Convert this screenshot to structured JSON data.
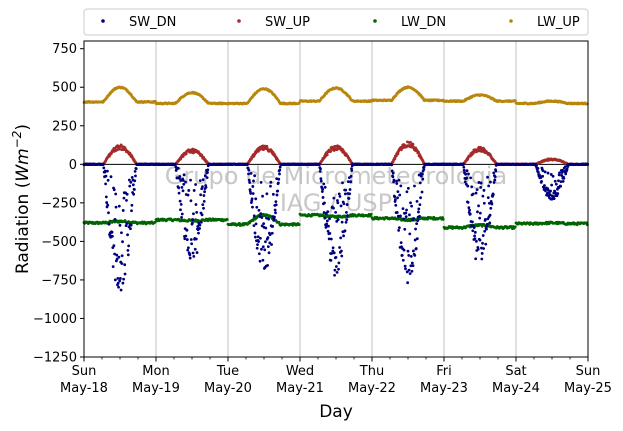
{
  "chart_data": {
    "type": "scatter",
    "title": "",
    "xlabel": "Day",
    "ylabel_main": "Radiation (",
    "ylabel_unit": "Wm",
    "ylabel_exp": "−2",
    "ylabel_close": ")",
    "ylim": [
      -1250,
      800
    ],
    "xlim": [
      0,
      7
    ],
    "yticks": [
      -1250,
      -1000,
      -750,
      -500,
      -250,
      0,
      250,
      500,
      750
    ],
    "ytick_labels": [
      "−1250",
      "−1000",
      "−750",
      "−500",
      "−250",
      "0",
      "250",
      "500",
      "750"
    ],
    "xticks": [
      {
        "x": 0,
        "day": "Sun",
        "date": "May-18"
      },
      {
        "x": 1,
        "day": "Mon",
        "date": "May-19"
      },
      {
        "x": 2,
        "day": "Tue",
        "date": "May-20"
      },
      {
        "x": 3,
        "day": "Wed",
        "date": "May-21"
      },
      {
        "x": 4,
        "day": "Thu",
        "date": "May-22"
      },
      {
        "x": 5,
        "day": "Fri",
        "date": "May-23"
      },
      {
        "x": 6,
        "day": "Sat",
        "date": "May-24"
      },
      {
        "x": 7,
        "day": "Sun",
        "date": "May-25"
      }
    ],
    "grid": "vertical",
    "legend_position": "top",
    "watermark": [
      "Grupo de Micrometeorologia",
      "IAG / USP"
    ],
    "series": [
      {
        "name": "SW_DN",
        "color": "#00007f"
      },
      {
        "name": "SW_UP",
        "color": "#a52a2a"
      },
      {
        "name": "LW_DN",
        "color": "#006400"
      },
      {
        "name": "LW_UP",
        "color": "#b8860b"
      }
    ],
    "daily_peaks": {
      "SW_DN": [
        -800,
        -620,
        -670,
        -700,
        -740,
        -640,
        -220
      ],
      "SW_UP": [
        120,
        95,
        115,
        115,
        140,
        105,
        35
      ],
      "LW_UP": [
        500,
        465,
        490,
        495,
        500,
        450,
        410
      ]
    },
    "lw_dn_daily": [
      {
        "night": -380,
        "day": -370
      },
      {
        "night": -360,
        "day": -365
      },
      {
        "night": -390,
        "day": -330
      },
      {
        "night": -330,
        "day": -340
      },
      {
        "night": -350,
        "day": -360
      },
      {
        "night": -410,
        "day": -395
      },
      {
        "night": -385,
        "day": -380
      }
    ],
    "lw_up_baseline": [
      405,
      395,
      395,
      410,
      415,
      410,
      395
    ]
  }
}
